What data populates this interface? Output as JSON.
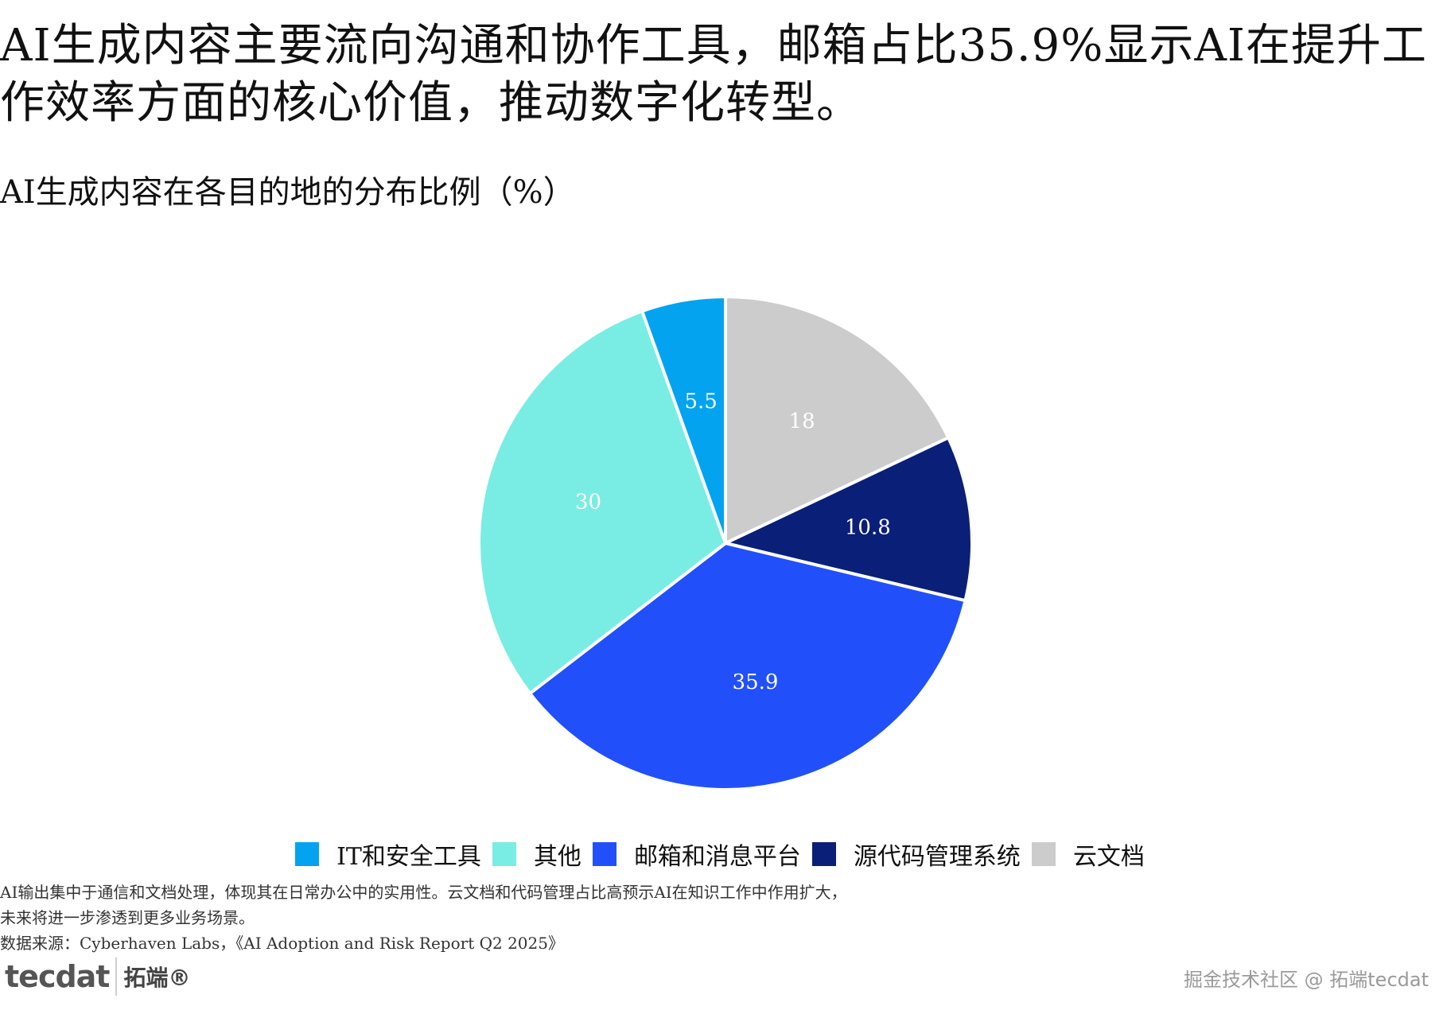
{
  "headline": "AI生成内容主要流向沟通和协作工具，邮箱占比35.9%显示AI在提升工作效率方面的核心价值，推动数字化转型。",
  "chart_data": {
    "type": "pie",
    "title": "AI生成内容在各目的地的分布比例（%）",
    "start_angle_deg": 0,
    "direction": "clockwise",
    "slices": [
      {
        "name": "云文档",
        "value": 18,
        "label": "18",
        "color": "#cccccc"
      },
      {
        "name": "源代码管理系统",
        "value": 10.8,
        "label": "10.8",
        "color": "#0a1f78"
      },
      {
        "name": "邮箱和消息平台",
        "value": 35.9,
        "label": "35.9",
        "color": "#2150fa"
      },
      {
        "name": "其他",
        "value": 30,
        "label": "30",
        "color": "#79ede3"
      },
      {
        "name": "IT和安全工具",
        "value": 5.5,
        "label": "5.5",
        "color": "#03a3f0"
      }
    ],
    "legend": {
      "position": "bottom",
      "order": [
        "IT和安全工具",
        "其他",
        "邮箱和消息平台",
        "源代码管理系统",
        "云文档"
      ]
    }
  },
  "notes": [
    "AI输出集中于通信和文档处理，体现其在日常办公中的实用性。云文档和代码管理占比高预示AI在知识工作中作用扩大，",
    "未来将进一步渗透到更多业务场景。",
    "数据来源：Cyberhaven Labs，《AI Adoption and Risk Report Q2 2025》"
  ],
  "logo": {
    "mark": "tecdat",
    "text": "拓端®"
  },
  "watermark": "掘金技术社区 @ 拓端tecdat"
}
